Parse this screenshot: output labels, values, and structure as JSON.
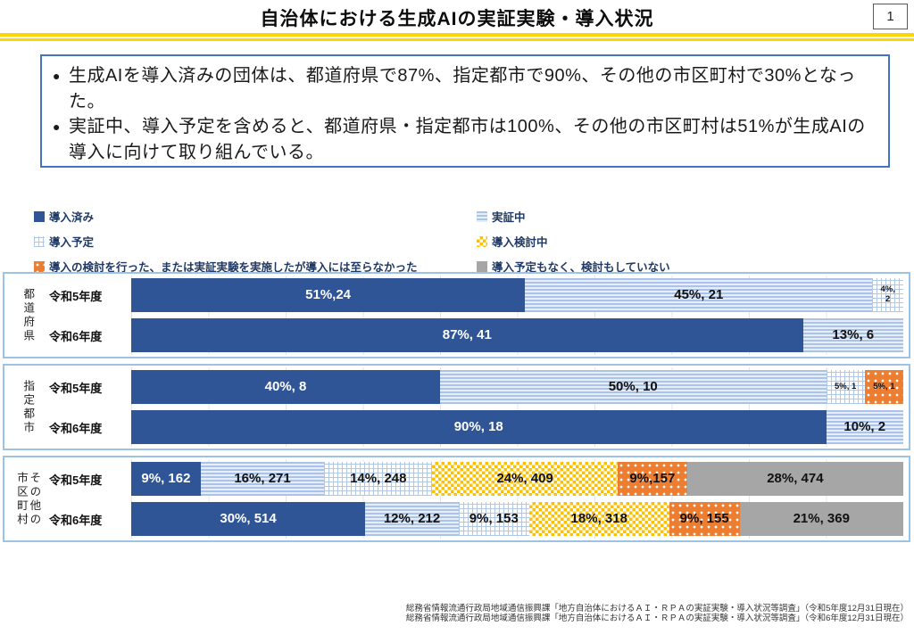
{
  "page": {
    "title": "自治体における生成AIの実証実験・導入状況",
    "page_number": "1"
  },
  "summary": {
    "bullets": [
      "生成AIを導入済みの団体は、都道府県で87%、指定都市で90%、その他の市区町村で30%となった。",
      "実証中、導入予定を含めると、都道府県・指定都市は100%、その他の市区町村は51%が生成AIの導入に向けて取り組んでいる。"
    ]
  },
  "legend": {
    "left": [
      {
        "label": "導入済み",
        "pattern": "adopted"
      },
      {
        "label": "導入予定",
        "pattern": "planned"
      },
      {
        "label": "導入の検討を行った、または実証実験を実施したが導入には至らなかった",
        "pattern": "not-adopted"
      }
    ],
    "right": [
      {
        "label": "実証中",
        "pattern": "testing"
      },
      {
        "label": "導入検討中",
        "pattern": "considering"
      },
      {
        "label": "導入予定もなく、検討もしていない",
        "pattern": "none"
      }
    ]
  },
  "chart_data": {
    "type": "bar",
    "orientation": "horizontal",
    "stacked": true,
    "value_format": "percent, count",
    "xlim_percent": [
      0,
      100
    ],
    "grid": true,
    "series_names": [
      "導入済み",
      "実証中",
      "導入予定",
      "導入検討中",
      "導入の検討を行った、または実証実験を実施したが導入には至らなかった",
      "導入予定もなく、検討もしていない"
    ],
    "groups": [
      {
        "name": "都道府県",
        "label_columns_ltr": [
          "都道府県"
        ],
        "rows": [
          {
            "year": "令和5年度",
            "segments": [
              {
                "series": "導入済み",
                "pattern": "adopted",
                "pct": 51,
                "count": 24,
                "label": "51%,24"
              },
              {
                "series": "実証中",
                "pattern": "testing",
                "pct": 45,
                "count": 21,
                "label": "45%, 21"
              },
              {
                "series": "導入予定",
                "pattern": "planned",
                "pct": 4,
                "count": 2,
                "label": "4%,\n2",
                "small": true
              }
            ]
          },
          {
            "year": "令和6年度",
            "segments": [
              {
                "series": "導入済み",
                "pattern": "adopted",
                "pct": 87,
                "count": 41,
                "label": "87%, 41"
              },
              {
                "series": "実証中",
                "pattern": "testing",
                "pct": 13,
                "count": 6,
                "label": "13%, 6"
              }
            ]
          }
        ]
      },
      {
        "name": "指定都市",
        "label_columns_ltr": [
          "指定都市"
        ],
        "rows": [
          {
            "year": "令和5年度",
            "segments": [
              {
                "series": "導入済み",
                "pattern": "adopted",
                "pct": 40,
                "count": 8,
                "label": "40%, 8"
              },
              {
                "series": "実証中",
                "pattern": "testing",
                "pct": 50,
                "count": 10,
                "label": "50%, 10"
              },
              {
                "series": "導入予定",
                "pattern": "planned",
                "pct": 5,
                "count": 1,
                "label": "5%, 1",
                "small": true
              },
              {
                "series": "導入の検討を行った、または実証実験を実施したが導入には至らなかった",
                "pattern": "not-adopted",
                "pct": 5,
                "count": 1,
                "label": "5%, 1",
                "small": true
              }
            ]
          },
          {
            "year": "令和6年度",
            "segments": [
              {
                "series": "導入済み",
                "pattern": "adopted",
                "pct": 90,
                "count": 18,
                "label": "90%, 18"
              },
              {
                "series": "実証中",
                "pattern": "testing",
                "pct": 10,
                "count": 2,
                "label": "10%, 2"
              }
            ]
          }
        ]
      },
      {
        "name": "その他の市区町村",
        "label_columns_ltr": [
          "市区町村",
          "その他の"
        ],
        "rows": [
          {
            "year": "令和5年度",
            "segments": [
              {
                "series": "導入済み",
                "pattern": "adopted",
                "pct": 9,
                "count": 162,
                "label": "9%, 162"
              },
              {
                "series": "実証中",
                "pattern": "testing",
                "pct": 16,
                "count": 271,
                "label": "16%, 271"
              },
              {
                "series": "導入予定",
                "pattern": "planned",
                "pct": 14,
                "count": 248,
                "label": "14%, 248"
              },
              {
                "series": "導入検討中",
                "pattern": "considering",
                "pct": 24,
                "count": 409,
                "label": "24%, 409"
              },
              {
                "series": "導入の検討を行った、または実証実験を実施したが導入には至らなかった",
                "pattern": "not-adopted",
                "pct": 9,
                "count": 157,
                "label": "9%,157"
              },
              {
                "series": "導入予定もなく、検討もしていない",
                "pattern": "none",
                "pct": 28,
                "count": 474,
                "label": "28%, 474"
              }
            ]
          },
          {
            "year": "令和6年度",
            "segments": [
              {
                "series": "導入済み",
                "pattern": "adopted",
                "pct": 30,
                "count": 514,
                "label": "30%, 514"
              },
              {
                "series": "実証中",
                "pattern": "testing",
                "pct": 12,
                "count": 212,
                "label": "12%, 212"
              },
              {
                "series": "導入予定",
                "pattern": "planned",
                "pct": 9,
                "count": 153,
                "label": "9%, 153"
              },
              {
                "series": "導入検討中",
                "pattern": "considering",
                "pct": 18,
                "count": 318,
                "label": "18%, 318"
              },
              {
                "series": "導入の検討を行った、または実証実験を実施したが導入には至らなかった",
                "pattern": "not-adopted",
                "pct": 9,
                "count": 155,
                "label": "9%, 155"
              },
              {
                "series": "導入予定もなく、検討もしていない",
                "pattern": "none",
                "pct": 21,
                "count": 369,
                "label": "21%, 369"
              }
            ]
          }
        ]
      }
    ]
  },
  "footer": {
    "sources": [
      "総務省情報流通行政局地域通信振興課「地方自治体におけるＡＩ・ＲＰＡの実証実験・導入状況等調査」（令和5年度12月31日現在）",
      "総務省情報流通行政局地域通信振興課「地方自治体におけるＡＩ・ＲＰＡの実証実験・導入状況等調査」（令和6年度12月31日現在）"
    ]
  },
  "colors": {
    "adopted-blue": "#2F5597",
    "stripe-light": "#E7EEF9",
    "stripe-dark": "#A9C4E8",
    "grid-blue": "#AFC7E8",
    "considering-yellow": "#FFC000",
    "not-adopted-orange": "#ED7D31",
    "none-gray": "#A6A6A6",
    "panel-border": "#9CC2E5",
    "summary-border": "#4472C4",
    "yellow-rule": "#FFD500",
    "legend-text": "#1F3864"
  }
}
